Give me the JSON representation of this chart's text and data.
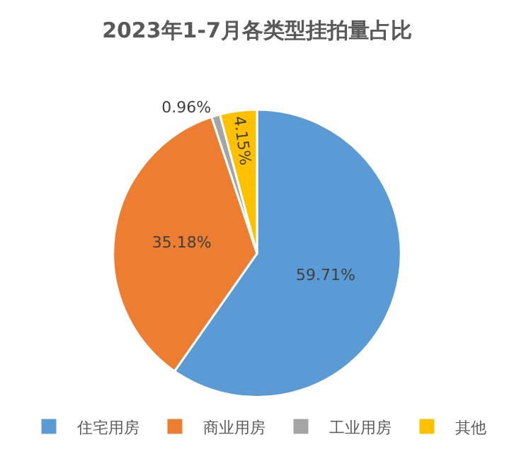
{
  "chart_data": {
    "type": "pie",
    "title": "2023年1-7月各类型挂拍量占比",
    "categories": [
      "住宅用房",
      "商业用房",
      "工业用房",
      "其他"
    ],
    "values": [
      59.71,
      35.18,
      0.96,
      4.15
    ],
    "value_labels": [
      "59.71%",
      "35.18%",
      "0.96%",
      "4.15%"
    ],
    "colors": [
      "#5b9bd5",
      "#ed7d31",
      "#a5a5a5",
      "#ffc000"
    ],
    "legend": "bottom"
  }
}
